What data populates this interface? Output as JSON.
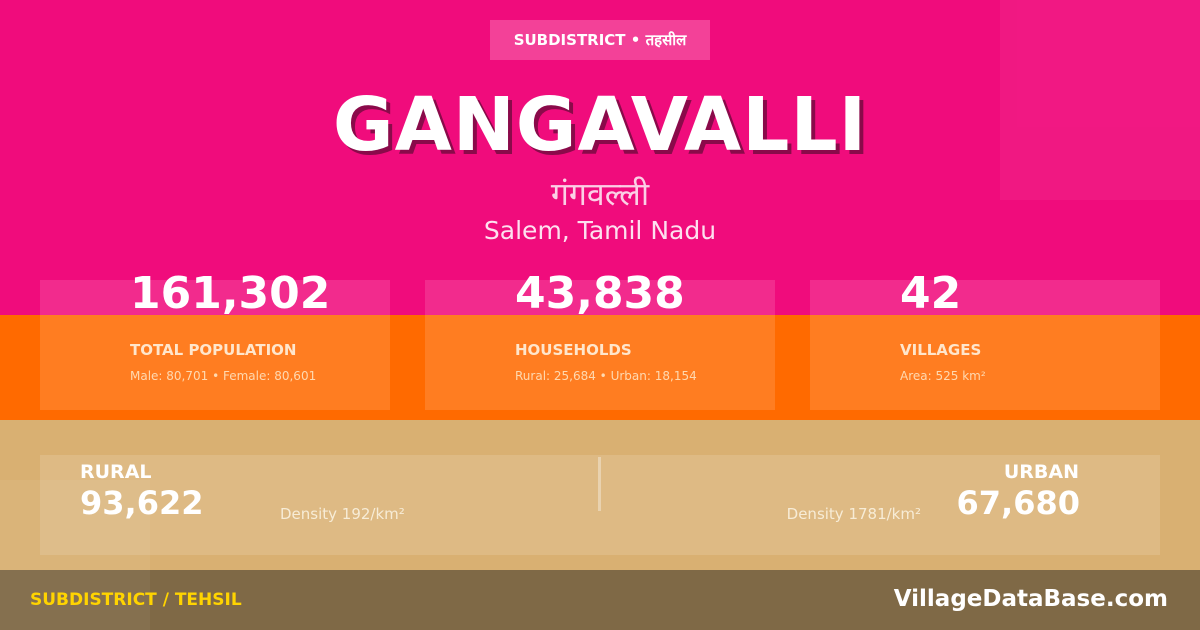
{
  "badge": "SUBDISTRICT • तहसील",
  "title": "GANGAVALLI",
  "native_name": "गंगवल्ली",
  "location": "Salem, Tamil Nadu",
  "stats": [
    {
      "value": "161,302",
      "label": "TOTAL POPULATION",
      "detail": "Male: 80,701 • Female: 80,601"
    },
    {
      "value": "43,838",
      "label": "HOUSEHOLDS",
      "detail": "Rural: 25,684 • Urban: 18,154"
    },
    {
      "value": "42",
      "label": "VILLAGES",
      "detail": "Area: 525 km²"
    }
  ],
  "rural": {
    "label": "RURAL",
    "value": "93,622",
    "density": "Density 192/km²"
  },
  "urban": {
    "label": "URBAN",
    "value": "67,680",
    "density": "Density 1781/km²"
  },
  "footer": {
    "type": "SUBDISTRICT / TEHSIL",
    "brand": "VillageDataBase.com"
  },
  "colors": {
    "pink": "#F00C7C",
    "orange": "#FF6A00",
    "tan": "#D9B072",
    "footer": "#7F6946",
    "accent": "#FFD400"
  }
}
